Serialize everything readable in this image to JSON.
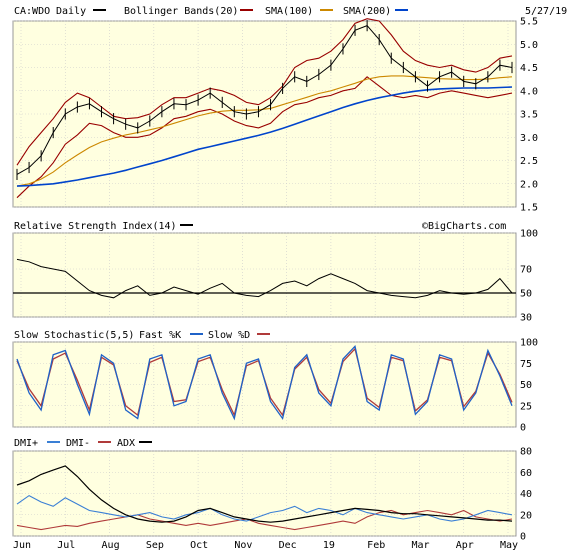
{
  "header": {
    "symbol": "CA:WDO",
    "period": "Daily",
    "date": "5/27/19",
    "bb_label": "Bollinger Bands(20)",
    "sma100_label": "SMA(100)",
    "sma200_label": "SMA(200)"
  },
  "colors": {
    "panel_bg": "#ffffe0",
    "grid": "#cccccc",
    "price": "#000000",
    "bollinger": "#990000",
    "sma100": "#cc8800",
    "sma200": "#0044cc",
    "fast_k": "#1f62c8",
    "slow_d": "#b03a3a",
    "dmi_plus": "#3a7fd5",
    "dmi_minus": "#b03a3a",
    "adx": "#000000"
  },
  "watermark": "©BigCharts.com",
  "chart_data": [
    {
      "type": "line",
      "title": "CA:WDO Daily",
      "x_labels": [
        "Jun",
        "Jul",
        "Aug",
        "Sep",
        "Oct",
        "Nov",
        "Dec",
        "19",
        "Feb",
        "Mar",
        "Apr",
        "May"
      ],
      "ylim": [
        1.5,
        5.5
      ],
      "yticks": [
        1.5,
        2.0,
        2.5,
        3.0,
        3.5,
        4.0,
        4.5,
        5.0,
        5.5
      ],
      "price_close": [
        2.2,
        2.35,
        2.6,
        3.1,
        3.5,
        3.65,
        3.72,
        3.55,
        3.4,
        3.28,
        3.2,
        3.35,
        3.55,
        3.72,
        3.7,
        3.8,
        3.95,
        3.75,
        3.55,
        3.5,
        3.55,
        3.7,
        4.05,
        4.3,
        4.2,
        4.35,
        4.55,
        4.9,
        5.3,
        5.4,
        5.1,
        4.7,
        4.5,
        4.3,
        4.1,
        4.3,
        4.4,
        4.2,
        4.15,
        4.3,
        4.55,
        4.5
      ],
      "series": [
        {
          "name": "Bollinger Bands(20)",
          "upper": [
            2.4,
            2.8,
            3.1,
            3.4,
            3.75,
            3.95,
            3.85,
            3.65,
            3.45,
            3.4,
            3.42,
            3.5,
            3.7,
            3.85,
            3.85,
            3.95,
            4.05,
            4.0,
            3.9,
            3.75,
            3.7,
            3.85,
            4.1,
            4.5,
            4.65,
            4.7,
            4.85,
            5.1,
            5.45,
            5.55,
            5.5,
            5.2,
            4.85,
            4.65,
            4.55,
            4.5,
            4.55,
            4.45,
            4.4,
            4.5,
            4.7,
            4.75
          ],
          "lower": [
            1.7,
            1.95,
            2.15,
            2.45,
            2.85,
            3.05,
            3.3,
            3.25,
            3.1,
            3.0,
            3.0,
            3.05,
            3.2,
            3.4,
            3.45,
            3.55,
            3.6,
            3.5,
            3.35,
            3.25,
            3.2,
            3.3,
            3.55,
            3.7,
            3.75,
            3.85,
            3.9,
            4.0,
            4.05,
            4.3,
            4.1,
            3.9,
            3.85,
            3.9,
            3.85,
            3.95,
            4.0,
            3.95,
            3.9,
            3.85,
            3.9,
            3.95
          ]
        },
        {
          "name": "SMA(100)",
          "values": [
            1.95,
            2.0,
            2.1,
            2.25,
            2.45,
            2.62,
            2.78,
            2.9,
            2.98,
            3.05,
            3.1,
            3.16,
            3.22,
            3.3,
            3.38,
            3.46,
            3.52,
            3.56,
            3.58,
            3.58,
            3.59,
            3.62,
            3.7,
            3.78,
            3.86,
            3.94,
            4.0,
            4.08,
            4.16,
            4.25,
            4.3,
            4.32,
            4.32,
            4.3,
            4.28,
            4.26,
            4.25,
            4.24,
            4.24,
            4.25,
            4.28,
            4.3
          ]
        },
        {
          "name": "SMA(200)",
          "values": [
            1.95,
            1.96,
            1.98,
            2.0,
            2.04,
            2.08,
            2.13,
            2.18,
            2.23,
            2.29,
            2.36,
            2.43,
            2.5,
            2.58,
            2.66,
            2.74,
            2.8,
            2.86,
            2.92,
            2.98,
            3.04,
            3.11,
            3.19,
            3.28,
            3.37,
            3.46,
            3.55,
            3.64,
            3.72,
            3.79,
            3.85,
            3.9,
            3.95,
            3.99,
            4.02,
            4.04,
            4.05,
            4.06,
            4.06,
            4.06,
            4.07,
            4.08
          ]
        }
      ]
    },
    {
      "type": "line",
      "title": "Relative Strength Index(14)",
      "ylim": [
        30,
        100
      ],
      "yticks": [
        30,
        50,
        70,
        100
      ],
      "reference_line": 50,
      "series": [
        {
          "name": "RSI(14)",
          "values": [
            78,
            76,
            72,
            70,
            68,
            60,
            52,
            48,
            46,
            52,
            56,
            48,
            50,
            55,
            52,
            49,
            54,
            58,
            50,
            48,
            47,
            52,
            58,
            60,
            56,
            62,
            66,
            62,
            58,
            52,
            50,
            48,
            47,
            46,
            48,
            52,
            50,
            49,
            50,
            53,
            62,
            50
          ]
        }
      ]
    },
    {
      "type": "line",
      "title": "Slow Stochastic(5,5)",
      "ylim": [
        0,
        100
      ],
      "yticks": [
        0,
        25,
        50,
        75,
        100
      ],
      "series": [
        {
          "name": "Fast %K",
          "values": [
            80,
            40,
            20,
            85,
            90,
            50,
            15,
            85,
            75,
            20,
            10,
            80,
            85,
            25,
            30,
            80,
            85,
            40,
            10,
            75,
            80,
            30,
            10,
            70,
            85,
            40,
            25,
            80,
            95,
            30,
            20,
            85,
            80,
            15,
            30,
            85,
            80,
            20,
            40,
            90,
            60,
            25
          ]
        },
        {
          "name": "Slow %D",
          "values": [
            78,
            45,
            25,
            80,
            87,
            55,
            20,
            82,
            73,
            25,
            14,
            76,
            82,
            30,
            32,
            77,
            82,
            44,
            14,
            72,
            78,
            34,
            14,
            68,
            82,
            44,
            28,
            77,
            92,
            34,
            23,
            82,
            78,
            19,
            32,
            82,
            78,
            24,
            42,
            87,
            62,
            29
          ]
        }
      ]
    },
    {
      "type": "line",
      "title": "DMI+ DMI- ADX",
      "ylim": [
        0,
        80
      ],
      "yticks": [
        0,
        20,
        40,
        60,
        80
      ],
      "series": [
        {
          "name": "DMI+",
          "values": [
            30,
            38,
            32,
            28,
            36,
            30,
            24,
            22,
            20,
            18,
            20,
            22,
            18,
            16,
            20,
            22,
            26,
            20,
            16,
            14,
            18,
            22,
            24,
            28,
            22,
            26,
            24,
            20,
            26,
            22,
            20,
            18,
            16,
            18,
            20,
            16,
            14,
            16,
            20,
            24,
            22,
            20
          ]
        },
        {
          "name": "DMI-",
          "values": [
            10,
            8,
            6,
            8,
            10,
            9,
            12,
            14,
            16,
            18,
            20,
            16,
            14,
            12,
            10,
            12,
            10,
            12,
            14,
            16,
            12,
            10,
            8,
            6,
            8,
            10,
            12,
            14,
            12,
            18,
            22,
            24,
            20,
            22,
            24,
            22,
            20,
            24,
            18,
            16,
            14,
            16
          ]
        },
        {
          "name": "ADX",
          "values": [
            48,
            52,
            58,
            62,
            66,
            56,
            44,
            34,
            26,
            20,
            16,
            14,
            13,
            14,
            18,
            24,
            26,
            22,
            18,
            16,
            14,
            13,
            14,
            16,
            18,
            20,
            22,
            24,
            26,
            25,
            24,
            22,
            21,
            21,
            20,
            19,
            18,
            17,
            16,
            15,
            15,
            14
          ]
        }
      ]
    }
  ]
}
